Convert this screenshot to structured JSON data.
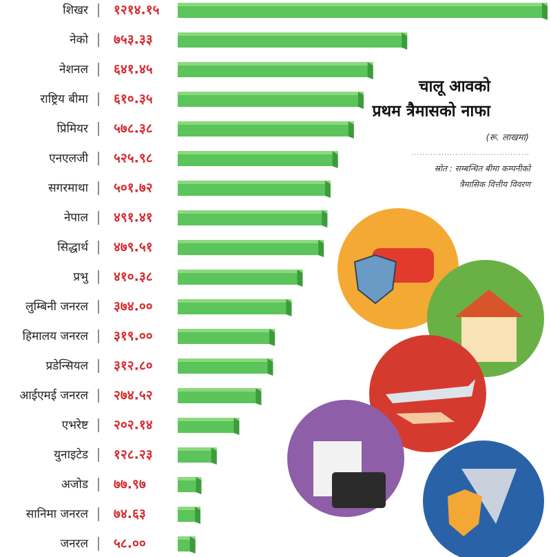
{
  "chart_data": {
    "type": "bar",
    "orientation": "horizontal",
    "title_lines": [
      "चालू आवको",
      "प्रथम त्रैमासको नाफा"
    ],
    "subtitle": "(रू. लाखमा)",
    "source_lines": [
      "स्रोत : सम्बन्धित बीमा कम्पनीको",
      "त्रैमासिक वित्तीय विवरण"
    ],
    "color": "#5bc45a",
    "label_color": "#d62a2f",
    "categories": [
      "शिखर",
      "नेको",
      "नेशनल",
      "राष्ट्रिय बीमा",
      "प्रिमियर",
      "एनएलजी",
      "सगरमाथा",
      "नेपाल",
      "सिद्धार्थ",
      "प्रभु",
      "लुम्बिनी जनरल",
      "हिमालय जनरल",
      "प्रडेन्सियल",
      "आईएमई जनरल",
      "एभरेष्ट",
      "युनाइटेड",
      "अजोड",
      "सानिमा जनरल",
      "जनरल"
    ],
    "values": [
      1214.15,
      753.33,
      641.45,
      610.35,
      578.38,
      525.98,
      501.72,
      491.41,
      479.51,
      410.38,
      374.0,
      319.0,
      312.8,
      274.52,
      202.14,
      128.23,
      77.97,
      74.63,
      58.0
    ],
    "value_labels": [
      "१२१४.१५",
      "७५३.३३",
      "६४१.४५",
      "६१०.३५",
      "५७८.३८",
      "५२५.९८",
      "५०१.७२",
      "४९१.४१",
      "४७९.५१",
      "४१०.३८",
      "३७४.००",
      "३१९.००",
      "३१२.८०",
      "२७४.५२",
      "२०२.१४",
      "१२८.२३",
      "७७.९७",
      "७४.६३",
      "५८.००"
    ]
  }
}
